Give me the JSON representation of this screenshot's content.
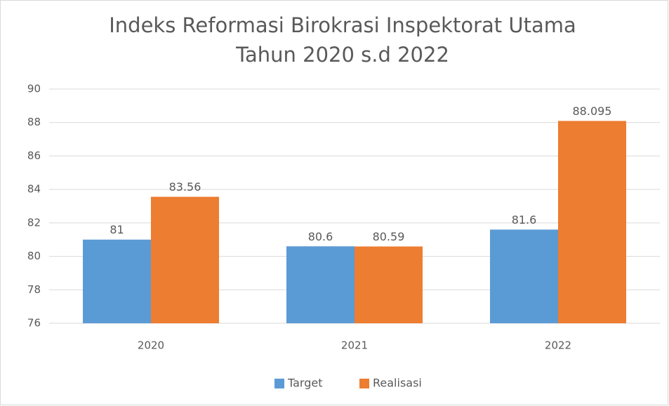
{
  "chart_data": {
    "type": "bar",
    "title": "Indeks Reformasi Birokrasi Inspektorat Utama",
    "subtitle": "Tahun 2020 s.d 2022",
    "categories": [
      "2020",
      "2021",
      "2022"
    ],
    "series": [
      {
        "name": "Target",
        "color": "#5b9bd5",
        "values": [
          81,
          80.6,
          81.6
        ]
      },
      {
        "name": "Realisasi",
        "color": "#ed7d31",
        "values": [
          83.56,
          80.59,
          88.095
        ]
      }
    ],
    "ylim": [
      76,
      90
    ],
    "yticks": [
      76,
      78,
      80,
      82,
      84,
      86,
      88,
      90
    ],
    "grid": true,
    "legend": "bottom"
  }
}
